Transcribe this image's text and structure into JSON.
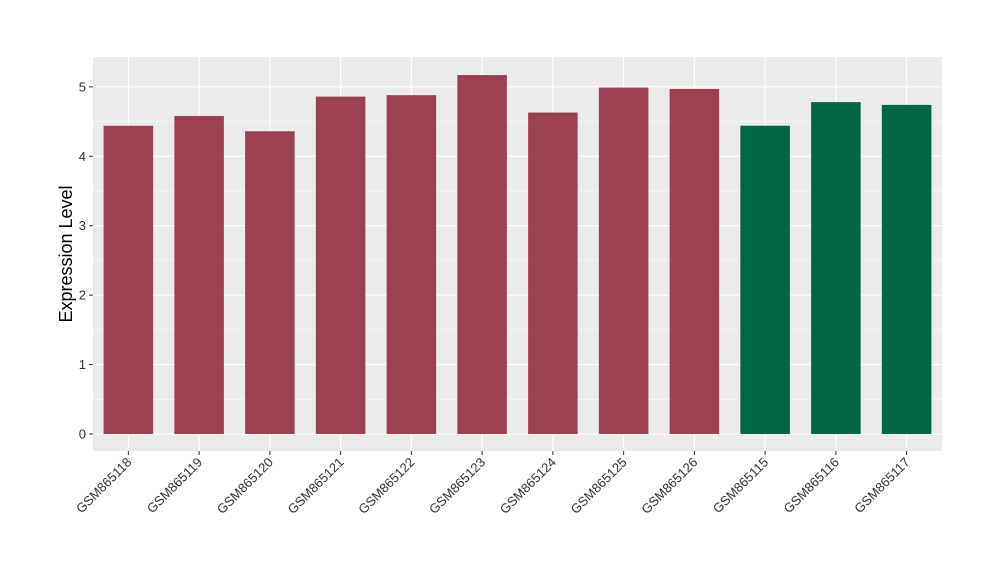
{
  "chart_data": {
    "type": "bar",
    "title": "",
    "xlabel": "",
    "ylabel": "Expression Level",
    "ylim": [
      -0.245,
      5.43
    ],
    "yticks": [
      0,
      1,
      2,
      3,
      4,
      5
    ],
    "grid": true,
    "categories": [
      "GSM865118",
      "GSM865119",
      "GSM865120",
      "GSM865121",
      "GSM865122",
      "GSM865123",
      "GSM865124",
      "GSM865125",
      "GSM865126",
      "GSM865115",
      "GSM865116",
      "GSM865117"
    ],
    "values": [
      4.44,
      4.58,
      4.36,
      4.86,
      4.88,
      5.17,
      4.63,
      4.99,
      4.97,
      4.44,
      4.78,
      4.74
    ],
    "groups": [
      "a",
      "a",
      "a",
      "a",
      "a",
      "a",
      "a",
      "a",
      "a",
      "b",
      "b",
      "b"
    ],
    "colors": {
      "a": "#9b4151",
      "b": "#006643"
    },
    "panel_background": "#ebebeb"
  }
}
